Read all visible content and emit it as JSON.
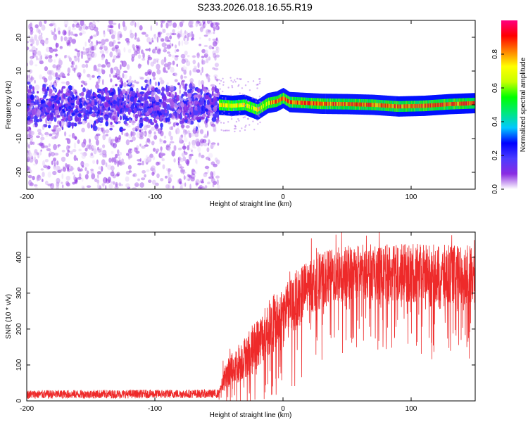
{
  "figure_title": "S233.2026.018.16.55.R19",
  "chart_data": [
    {
      "type": "heatmap",
      "title": "",
      "xlabel": "Height of straight line (km)",
      "ylabel": "Frequency (Hz)",
      "xlim": [
        -200,
        150
      ],
      "ylim": [
        -25,
        25
      ],
      "x_ticks": [
        -200,
        -100,
        0,
        100
      ],
      "y_ticks": [
        -20,
        -10,
        0,
        10,
        20
      ],
      "grid": false,
      "colorbar": {
        "label": "Normalized spectral amplitude",
        "range": [
          0.0,
          1.0
        ],
        "ticks": [
          "0.0",
          "0.2",
          "0.4",
          "0.6",
          "0.8"
        ],
        "colormap": [
          "#ffffff",
          "#8a2be2",
          "#4b3cff",
          "#0000ff",
          "#00c8ff",
          "#00e87a",
          "#00ff00",
          "#c8ff00",
          "#ffff00",
          "#ff8000",
          "#ff0000",
          "#ff007f"
        ]
      },
      "regions": [
        {
          "x_range": [
            -200,
            -50
          ],
          "description_level": "noise",
          "spread_hz": 25,
          "core_hz": 4,
          "peak_amplitude": 0.2
        },
        {
          "x_range": [
            -50,
            150
          ],
          "description_level": "signal",
          "spread_hz": 3,
          "core_hz": 1,
          "peak_amplitude": 0.95
        }
      ],
      "center_frequency_profile": [
        {
          "x": -50,
          "f": 0.0
        },
        {
          "x": -40,
          "f": -0.3
        },
        {
          "x": -30,
          "f": 0.0
        },
        {
          "x": -20,
          "f": -1.5
        },
        {
          "x": -12,
          "f": 0.5
        },
        {
          "x": -5,
          "f": 1.0
        },
        {
          "x": 0,
          "f": 2.0
        },
        {
          "x": 5,
          "f": 0.8
        },
        {
          "x": 15,
          "f": 0.6
        },
        {
          "x": 30,
          "f": 0.3
        },
        {
          "x": 50,
          "f": 0.2
        },
        {
          "x": 70,
          "f": 0.0
        },
        {
          "x": 90,
          "f": -0.5
        },
        {
          "x": 110,
          "f": -0.3
        },
        {
          "x": 130,
          "f": 0.2
        },
        {
          "x": 150,
          "f": 0.5
        }
      ]
    },
    {
      "type": "line",
      "title": "",
      "xlabel": "Height of straight line (km)",
      "ylabel": "SNR (10 * v/v)",
      "xlim": [
        -200,
        150
      ],
      "ylim": [
        0,
        470
      ],
      "x_ticks": [
        -200,
        -100,
        0,
        100
      ],
      "y_ticks": [
        0,
        100,
        200,
        300,
        400
      ],
      "grid": false,
      "series": [
        {
          "color": "#ee2a2a",
          "envelope": [
            {
              "x": -200,
              "mean": 18,
              "spread": 12
            },
            {
              "x": -50,
              "mean": 20,
              "spread": 12
            },
            {
              "x": -45,
              "mean": 70,
              "spread": 60
            },
            {
              "x": -40,
              "mean": 90,
              "spread": 90
            },
            {
              "x": -30,
              "mean": 120,
              "spread": 110
            },
            {
              "x": -20,
              "mean": 160,
              "spread": 130
            },
            {
              "x": -10,
              "mean": 210,
              "spread": 140
            },
            {
              "x": 0,
              "mean": 240,
              "spread": 150
            },
            {
              "x": 10,
              "mean": 280,
              "spread": 150
            },
            {
              "x": 20,
              "mean": 320,
              "spread": 140
            },
            {
              "x": 40,
              "mean": 350,
              "spread": 140
            },
            {
              "x": 60,
              "mean": 360,
              "spread": 140
            },
            {
              "x": 100,
              "mean": 355,
              "spread": 150
            },
            {
              "x": 150,
              "mean": 350,
              "spread": 150
            }
          ]
        }
      ]
    }
  ]
}
